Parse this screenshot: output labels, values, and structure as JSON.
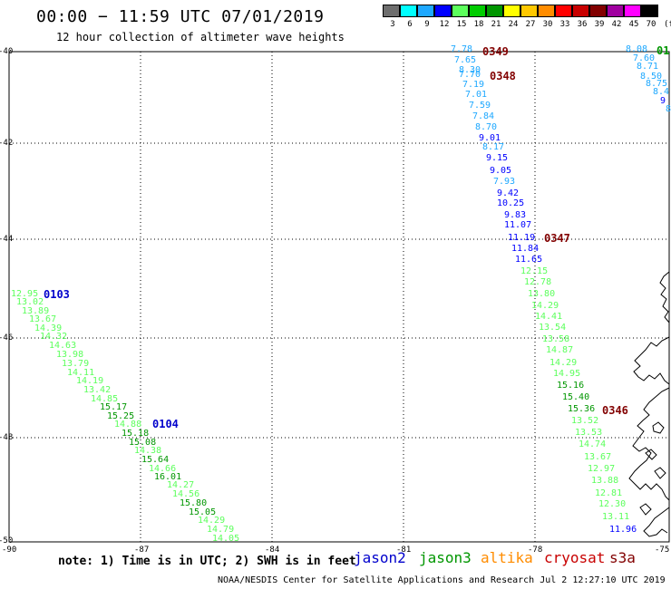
{
  "header": {
    "title": "00:00 − 11:59 UTC 07/01/2019",
    "subtitle": "12 hour collection of altimeter wave heights"
  },
  "legend": {
    "unit": "(ft)",
    "bins": [
      {
        "label": "3",
        "color": "#6e6e6e"
      },
      {
        "label": "6",
        "color": "#00ffff"
      },
      {
        "label": "9",
        "color": "#1ea8ff"
      },
      {
        "label": "12",
        "color": "#0000ff"
      },
      {
        "label": "15",
        "color": "#5cff5c"
      },
      {
        "label": "18",
        "color": "#00cc00"
      },
      {
        "label": "21",
        "color": "#009600"
      },
      {
        "label": "24",
        "color": "#ffff00"
      },
      {
        "label": "27",
        "color": "#ffc800"
      },
      {
        "label": "30",
        "color": "#ff8c00"
      },
      {
        "label": "33",
        "color": "#ff0000"
      },
      {
        "label": "36",
        "color": "#c80000"
      },
      {
        "label": "39",
        "color": "#820000"
      },
      {
        "label": "42",
        "color": "#a000a0"
      },
      {
        "label": "45",
        "color": "#ff00ff"
      },
      {
        "label": "70",
        "color": "#000000"
      }
    ]
  },
  "axes": {
    "lon_ticks": [
      "-90",
      "-87",
      "-84",
      "-81",
      "-78",
      "-75"
    ],
    "lat_ticks": [
      "-40",
      "-42",
      "-44",
      "-46",
      "-48",
      "-50"
    ]
  },
  "footer": {
    "note": "note: 1) Time is in UTC; 2) SWH is in feet",
    "satellites": [
      {
        "name": "jason2",
        "color": "#0000cc"
      },
      {
        "name": "jason3",
        "color": "#009600"
      },
      {
        "name": "altika",
        "color": "#ff8c00"
      },
      {
        "name": "cryosat",
        "color": "#c80000"
      },
      {
        "name": "s3a",
        "color": "#820000"
      }
    ],
    "credit": "NOAA/NESDIS Center for Satellite Applications and Research    Jul  2 12:27:10 UTC 2019"
  },
  "pass_times": [
    {
      "text": "0349",
      "color": "#820000"
    },
    {
      "text": "0348",
      "color": "#820000"
    },
    {
      "text": "0347",
      "color": "#820000"
    },
    {
      "text": "0346",
      "color": "#820000"
    },
    {
      "text": "0103",
      "color": "#0000cc"
    },
    {
      "text": "0104",
      "color": "#0000cc"
    },
    {
      "text": "01",
      "color": "#009600"
    }
  ],
  "wave_heights": [
    {
      "value": "7.78",
      "color": "#1ea8ff"
    },
    {
      "value": "7.65",
      "color": "#1ea8ff"
    },
    {
      "value": "8.30",
      "color": "#1ea8ff"
    },
    {
      "value": "7.70",
      "color": "#1ea8ff"
    },
    {
      "value": "7.19",
      "color": "#1ea8ff"
    },
    {
      "value": "7.01",
      "color": "#1ea8ff"
    },
    {
      "value": "7.59",
      "color": "#1ea8ff"
    },
    {
      "value": "7.84",
      "color": "#1ea8ff"
    },
    {
      "value": "8.70",
      "color": "#1ea8ff"
    },
    {
      "value": "9.01",
      "color": "#0000ff"
    },
    {
      "value": "8.17",
      "color": "#1ea8ff"
    },
    {
      "value": "9.15",
      "color": "#0000ff"
    },
    {
      "value": "9.05",
      "color": "#0000ff"
    },
    {
      "value": "7.93",
      "color": "#1ea8ff"
    },
    {
      "value": "9.42",
      "color": "#0000ff"
    },
    {
      "value": "10.25",
      "color": "#0000ff"
    },
    {
      "value": "9.83",
      "color": "#0000ff"
    },
    {
      "value": "11.07",
      "color": "#0000ff"
    },
    {
      "value": "11.19",
      "color": "#0000ff"
    },
    {
      "value": "11.84",
      "color": "#0000ff"
    },
    {
      "value": "11.65",
      "color": "#0000ff"
    },
    {
      "value": "12.15",
      "color": "#5cff5c"
    },
    {
      "value": "12.78",
      "color": "#5cff5c"
    },
    {
      "value": "13.80",
      "color": "#5cff5c"
    },
    {
      "value": "14.29",
      "color": "#5cff5c"
    },
    {
      "value": "14.41",
      "color": "#5cff5c"
    },
    {
      "value": "13.54",
      "color": "#5cff5c"
    },
    {
      "value": "13.58",
      "color": "#5cff5c"
    },
    {
      "value": "14.87",
      "color": "#5cff5c"
    },
    {
      "value": "14.29",
      "color": "#5cff5c"
    },
    {
      "value": "14.95",
      "color": "#5cff5c"
    },
    {
      "value": "15.16",
      "color": "#009600"
    },
    {
      "value": "15.40",
      "color": "#009600"
    },
    {
      "value": "15.36",
      "color": "#009600"
    },
    {
      "value": "13.52",
      "color": "#5cff5c"
    },
    {
      "value": "13.53",
      "color": "#5cff5c"
    },
    {
      "value": "14.74",
      "color": "#5cff5c"
    },
    {
      "value": "13.67",
      "color": "#5cff5c"
    },
    {
      "value": "12.97",
      "color": "#5cff5c"
    },
    {
      "value": "13.88",
      "color": "#5cff5c"
    },
    {
      "value": "12.81",
      "color": "#5cff5c"
    },
    {
      "value": "12.30",
      "color": "#5cff5c"
    },
    {
      "value": "13.11",
      "color": "#5cff5c"
    },
    {
      "value": "11.96",
      "color": "#0000ff"
    },
    {
      "value": "8.08",
      "color": "#1ea8ff"
    },
    {
      "value": "7.60",
      "color": "#1ea8ff"
    },
    {
      "value": "8.71",
      "color": "#1ea8ff"
    },
    {
      "value": "8.50",
      "color": "#1ea8ff"
    },
    {
      "value": "8.75",
      "color": "#1ea8ff"
    },
    {
      "value": "8.4",
      "color": "#1ea8ff"
    },
    {
      "value": "9",
      "color": "#0000ff"
    },
    {
      "value": "8",
      "color": "#1ea8ff"
    },
    {
      "value": "12.95",
      "color": "#5cff5c"
    },
    {
      "value": "13.02",
      "color": "#5cff5c"
    },
    {
      "value": "13.89",
      "color": "#5cff5c"
    },
    {
      "value": "13.67",
      "color": "#5cff5c"
    },
    {
      "value": "14.39",
      "color": "#5cff5c"
    },
    {
      "value": "14.32",
      "color": "#5cff5c"
    },
    {
      "value": "14.63",
      "color": "#5cff5c"
    },
    {
      "value": "13.98",
      "color": "#5cff5c"
    },
    {
      "value": "13.79",
      "color": "#5cff5c"
    },
    {
      "value": "14.11",
      "color": "#5cff5c"
    },
    {
      "value": "14.19",
      "color": "#5cff5c"
    },
    {
      "value": "13.42",
      "color": "#5cff5c"
    },
    {
      "value": "14.85",
      "color": "#5cff5c"
    },
    {
      "value": "15.17",
      "color": "#009600"
    },
    {
      "value": "15.25",
      "color": "#009600"
    },
    {
      "value": "14.88",
      "color": "#5cff5c"
    },
    {
      "value": "15.18",
      "color": "#009600"
    },
    {
      "value": "15.08",
      "color": "#009600"
    },
    {
      "value": "14.38",
      "color": "#5cff5c"
    },
    {
      "value": "15.64",
      "color": "#009600"
    },
    {
      "value": "14.66",
      "color": "#5cff5c"
    },
    {
      "value": "16.01",
      "color": "#009600"
    },
    {
      "value": "14.27",
      "color": "#5cff5c"
    },
    {
      "value": "14.56",
      "color": "#5cff5c"
    },
    {
      "value": "15.80",
      "color": "#009600"
    },
    {
      "value": "15.05",
      "color": "#009600"
    },
    {
      "value": "14.29",
      "color": "#5cff5c"
    },
    {
      "value": "14.79",
      "color": "#5cff5c"
    },
    {
      "value": "14.05",
      "color": "#5cff5c"
    }
  ]
}
